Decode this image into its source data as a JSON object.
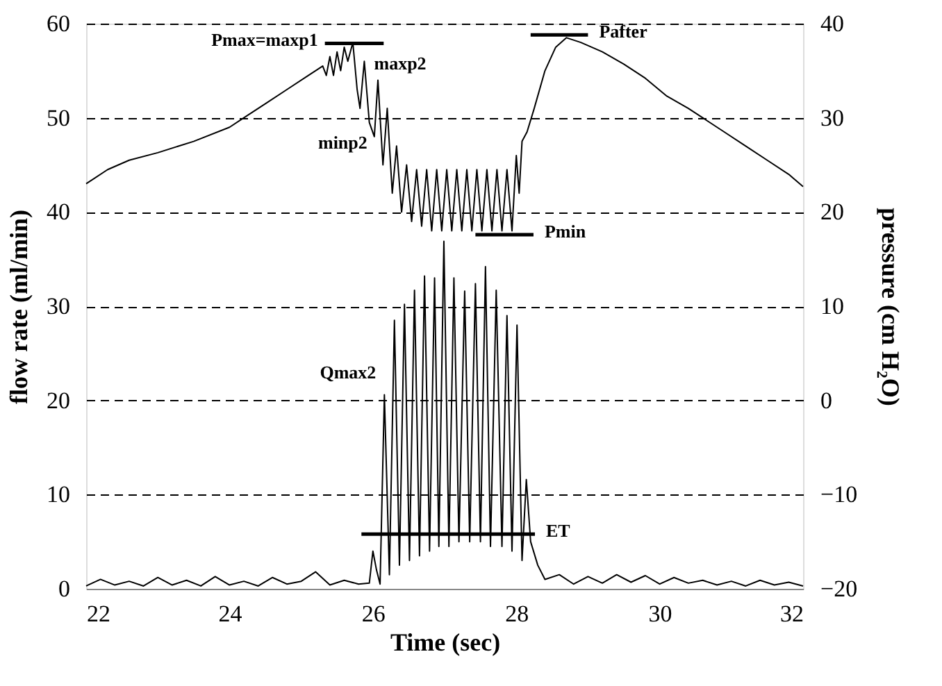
{
  "chart_data": {
    "type": "line",
    "xlabel": "Time (sec)",
    "ylabel": "flow rate (ml/min)",
    "y2label": "pressure (cm H₂O)",
    "xlim": [
      22,
      32
    ],
    "xticks": [
      22,
      24,
      26,
      28,
      30,
      32
    ],
    "ylim": [
      0,
      60
    ],
    "yticks": [
      0,
      10,
      20,
      30,
      40,
      50,
      60
    ],
    "y2lim": [
      -20,
      40
    ],
    "y2ticks": [
      -20,
      -10,
      0,
      10,
      20,
      30,
      40
    ],
    "grid": "y",
    "line_style": "solid",
    "marker": "none",
    "series": [
      {
        "color": "#000000",
        "axis": "y2",
        "x": [
          22.0,
          22.3,
          22.6,
          23.0,
          23.5,
          24.0,
          24.2,
          24.5,
          24.8,
          25.1,
          25.3,
          25.35,
          25.4,
          25.45,
          25.5,
          25.55,
          25.6,
          25.65,
          25.72,
          25.78,
          25.82,
          25.88,
          25.95,
          26.02,
          26.07,
          26.14,
          26.2,
          26.27,
          26.33,
          26.4,
          26.47,
          26.54,
          26.61,
          26.68,
          26.75,
          26.82,
          26.89,
          26.96,
          27.03,
          27.1,
          27.17,
          27.24,
          27.31,
          27.38,
          27.45,
          27.52,
          27.59,
          27.66,
          27.73,
          27.8,
          27.87,
          27.94,
          28.0,
          28.04,
          28.08,
          28.15,
          28.25,
          28.4,
          28.55,
          28.7,
          28.9,
          29.2,
          29.5,
          29.8,
          30.1,
          30.4,
          30.6,
          30.9,
          31.2,
          31.5,
          31.8,
          32.0
        ],
        "values": [
          23,
          24.5,
          25.5,
          26.3,
          27.5,
          29,
          30,
          31.5,
          33,
          34.5,
          35.5,
          34.5,
          36.5,
          34.5,
          37,
          35,
          37.5,
          36,
          38,
          33,
          31,
          36,
          29.5,
          28,
          34,
          25,
          31,
          22,
          27,
          20,
          25,
          19,
          24.5,
          18.5,
          24.5,
          18,
          24.5,
          18,
          24.5,
          18,
          24.5,
          18,
          24.5,
          18,
          24.5,
          18,
          24.5,
          18,
          24.5,
          18,
          24.5,
          18,
          26,
          22,
          27.5,
          28.5,
          31,
          35,
          37.5,
          38.5,
          38,
          37,
          35.7,
          34.2,
          32.3,
          31,
          30,
          28.5,
          27,
          25.5,
          24,
          22.7
        ]
      },
      {
        "color": "#000000",
        "x": [
          22.0,
          22.2,
          22.4,
          22.6,
          22.8,
          23.0,
          23.2,
          23.4,
          23.6,
          23.8,
          24.0,
          24.2,
          24.4,
          24.6,
          24.8,
          25.0,
          25.2,
          25.4,
          25.6,
          25.8,
          25.95,
          26.0,
          26.05,
          26.1,
          26.16,
          26.23,
          26.3,
          26.37,
          26.44,
          26.51,
          26.58,
          26.65,
          26.72,
          26.79,
          26.86,
          26.92,
          26.99,
          27.06,
          27.13,
          27.2,
          27.28,
          27.35,
          27.43,
          27.5,
          27.57,
          27.64,
          27.72,
          27.8,
          27.87,
          27.94,
          28.01,
          28.08,
          28.14,
          28.2,
          28.3,
          28.4,
          28.6,
          28.8,
          29.0,
          29.2,
          29.4,
          29.6,
          29.8,
          30.0,
          30.2,
          30.4,
          30.6,
          30.8,
          31.0,
          31.2,
          31.4,
          31.6,
          31.8,
          32.0
        ],
        "values": [
          0.3,
          1,
          0.4,
          0.8,
          0.3,
          1.2,
          0.4,
          0.9,
          0.3,
          1.3,
          0.4,
          0.8,
          0.3,
          1.2,
          0.5,
          0.8,
          1.8,
          0.4,
          0.9,
          0.5,
          0.6,
          4,
          2,
          0.5,
          20.6,
          1.5,
          28.5,
          2.5,
          30.2,
          3,
          31.7,
          3.5,
          33.2,
          4,
          33,
          4.5,
          36.9,
          4.5,
          33,
          5,
          31.6,
          5,
          32.4,
          5,
          34.2,
          4.5,
          31.7,
          4.5,
          29,
          4,
          28,
          3,
          11.6,
          5,
          2.5,
          1,
          1.5,
          0.5,
          1.3,
          0.6,
          1.5,
          0.7,
          1.4,
          0.5,
          1.2,
          0.6,
          0.9,
          0.4,
          0.8,
          0.3,
          0.9,
          0.4,
          0.7,
          0.3
        ]
      },
      {
        "name": "Pmax=maxp1",
        "color": "#000000",
        "axis": "y2",
        "x": [
          25.33,
          26.15
        ],
        "values": [
          37.9,
          37.9
        ]
      },
      {
        "name": "Pafter",
        "color": "#000000",
        "axis": "y2",
        "x": [
          28.2,
          29.0
        ],
        "values": [
          38.8,
          38.8
        ]
      },
      {
        "name": "Pmin",
        "color": "#000000",
        "axis": "y2",
        "x": [
          27.43,
          28.24
        ],
        "values": [
          17.6,
          17.6
        ]
      },
      {
        "name": "ET",
        "color": "#000000",
        "x": [
          25.84,
          28.26
        ],
        "values": [
          5.8,
          5.8
        ]
      }
    ],
    "annotations": [
      {
        "text": "maxp2",
        "x": 25.9,
        "y": 56
      },
      {
        "text": "minp2",
        "x": 26.0,
        "y": 48.5
      },
      {
        "text": "Qmax2",
        "x": 26.16,
        "y": 20.6
      }
    ]
  }
}
